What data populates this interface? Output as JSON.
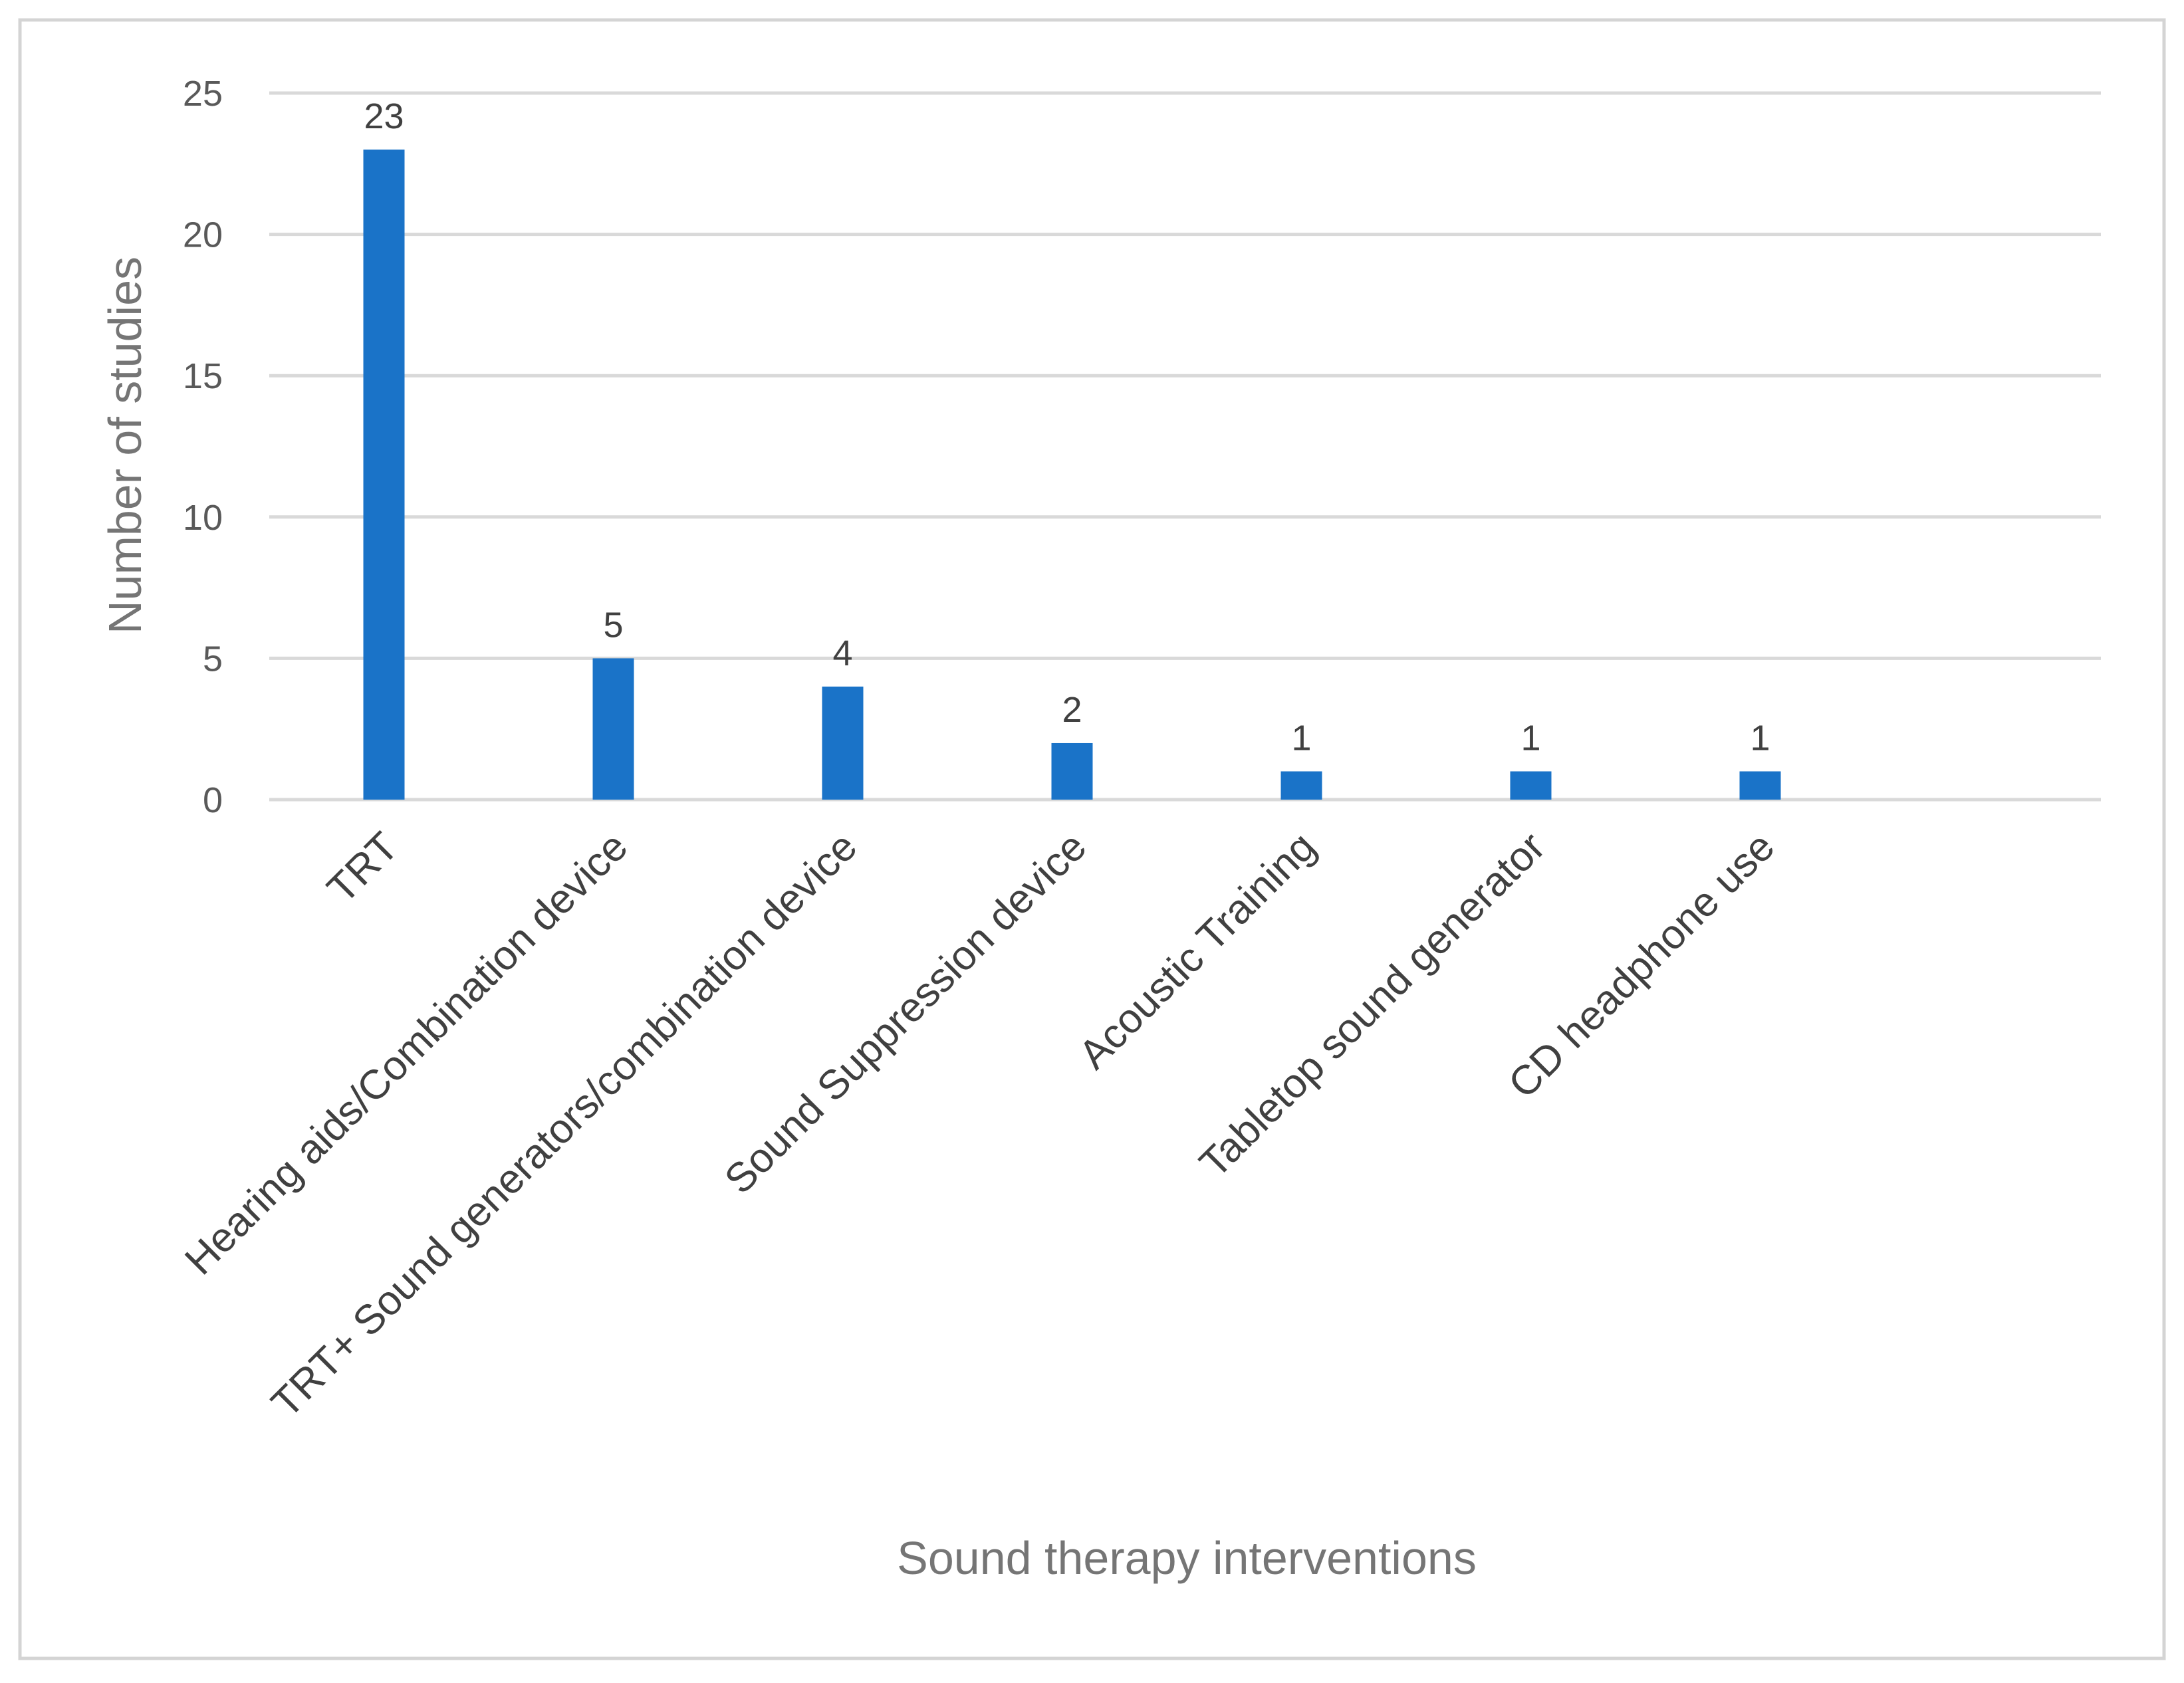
{
  "chart_data": {
    "type": "bar",
    "title": "",
    "xlabel": "Sound therapy interventions",
    "ylabel": "Number of  studies",
    "categories": [
      "TRT",
      "Hearing aids/Combination device",
      "TRT+ Sound generators/combination device",
      "Sound Suppression device",
      "Acoustic Training",
      "Tabletop sound generator",
      "CD headphone use"
    ],
    "values": [
      23,
      5,
      4,
      2,
      1,
      1,
      1
    ],
    "data_labels": [
      "23",
      "5",
      "4",
      "2",
      "1",
      "1",
      "1"
    ],
    "ylim": [
      0,
      25
    ],
    "yticks": [
      0,
      5,
      10,
      15,
      20,
      25
    ],
    "grid": true,
    "legend": "none",
    "bar_color": "#1a73c8"
  }
}
